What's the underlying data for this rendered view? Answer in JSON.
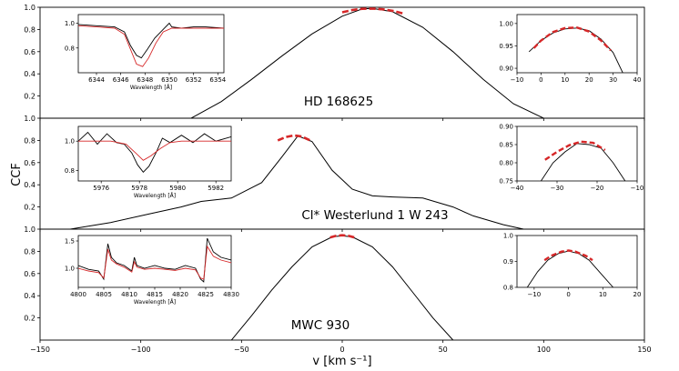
{
  "figure": {
    "xlabel": "v [km s⁻¹]",
    "ylabel": "CCF",
    "colors": {
      "observed": "#000000",
      "model": "#d62728",
      "fit": "#d62728"
    }
  },
  "chart_data": [
    {
      "type": "line",
      "name": "HD 168625 main CCF",
      "label": "HD 168625",
      "xlim": [
        -150,
        150
      ],
      "ylim": [
        0,
        1.0
      ],
      "xticks": [
        "−150",
        "−100",
        "−50",
        "0",
        "50",
        "100",
        "150"
      ],
      "yticks": [
        "0.2",
        "0.4",
        "0.6",
        "0.8",
        "1.0"
      ],
      "series": [
        {
          "name": "CCF",
          "x": [
            -75,
            -60,
            -45,
            -30,
            -15,
            0,
            10,
            15,
            25,
            40,
            55,
            70,
            85,
            100
          ],
          "y": [
            0.0,
            0.15,
            0.35,
            0.56,
            0.76,
            0.92,
            0.985,
            0.99,
            0.96,
            0.82,
            0.6,
            0.35,
            0.13,
            0.0
          ]
        },
        {
          "name": "Gaussian fit",
          "x": [
            0,
            5,
            10,
            15,
            20,
            25,
            30
          ],
          "y": [
            0.955,
            0.975,
            0.986,
            0.988,
            0.982,
            0.968,
            0.945
          ]
        }
      ],
      "insets": [
        {
          "type": "line",
          "name": "Spectrum",
          "xlabel": "Wavelength [Å]",
          "xlim": [
            6342.5,
            6354.5
          ],
          "ylim": [
            0.6,
            1.07
          ],
          "xticks": [
            "6344",
            "6346",
            "6348",
            "6350",
            "6352",
            "6354"
          ],
          "yticks": [
            "0.8",
            "1.0"
          ],
          "series": [
            {
              "name": "observed",
              "x": [
                6342.5,
                6344,
                6345.5,
                6346.3,
                6346.8,
                6347.3,
                6347.7,
                6348.2,
                6348.8,
                6349.5,
                6350.0,
                6350.2,
                6351,
                6352,
                6353,
                6354.5
              ],
              "y": [
                0.99,
                0.98,
                0.97,
                0.93,
                0.82,
                0.74,
                0.72,
                0.79,
                0.88,
                0.95,
                1.0,
                0.97,
                0.96,
                0.97,
                0.97,
                0.96
              ]
            },
            {
              "name": "model",
              "x": [
                6342.5,
                6344,
                6345.5,
                6346.3,
                6346.8,
                6347.3,
                6347.8,
                6348.3,
                6348.9,
                6349.5,
                6350.2,
                6351,
                6352,
                6353,
                6354.5
              ],
              "y": [
                0.98,
                0.97,
                0.96,
                0.91,
                0.79,
                0.67,
                0.65,
                0.72,
                0.84,
                0.93,
                0.96,
                0.96,
                0.96,
                0.96,
                0.96
              ]
            }
          ]
        },
        {
          "type": "line",
          "name": "Peak zoom",
          "xlim": [
            -10,
            40
          ],
          "ylim": [
            0.89,
            1.02
          ],
          "xticks": [
            "−10",
            "0",
            "10",
            "20",
            "30",
            "40"
          ],
          "yticks": [
            "0.90",
            "0.95",
            "1.00"
          ],
          "series": [
            {
              "name": "CCF",
              "x": [
                -5,
                0,
                5,
                10,
                15,
                20,
                25,
                30,
                34
              ],
              "y": [
                0.937,
                0.962,
                0.979,
                0.988,
                0.99,
                0.984,
                0.965,
                0.935,
                0.89
              ]
            },
            {
              "name": "fit",
              "x": [
                -3,
                0,
                5,
                10,
                15,
                20,
                25,
                29
              ],
              "y": [
                0.945,
                0.962,
                0.981,
                0.99,
                0.991,
                0.982,
                0.962,
                0.94
              ]
            }
          ]
        }
      ]
    },
    {
      "type": "line",
      "name": "Cl* Westerlund 1 W 243 main CCF",
      "label": "Cl* Westerlund 1 W 243",
      "xlim": [
        -150,
        150
      ],
      "ylim": [
        0,
        1.0
      ],
      "yticks": [
        "0.2",
        "0.4",
        "0.6",
        "0.8",
        "1.0"
      ],
      "series": [
        {
          "name": "CCF",
          "x": [
            -135,
            -115,
            -95,
            -80,
            -70,
            -55,
            -40,
            -30,
            -22,
            -15,
            -5,
            5,
            15,
            25,
            40,
            55,
            65,
            80,
            90
          ],
          "y": [
            0.0,
            0.06,
            0.14,
            0.2,
            0.25,
            0.28,
            0.42,
            0.65,
            0.84,
            0.79,
            0.53,
            0.36,
            0.3,
            0.29,
            0.28,
            0.2,
            0.12,
            0.04,
            0.0
          ]
        },
        {
          "name": "Gaussian fit",
          "x": [
            -32,
            -28,
            -24,
            -20,
            -16
          ],
          "y": [
            0.8,
            0.83,
            0.845,
            0.835,
            0.8
          ]
        }
      ],
      "insets": [
        {
          "type": "line",
          "name": "Spectrum",
          "xlabel": "Wavelength [Å]",
          "xlim": [
            5974.8,
            5982.8
          ],
          "ylim": [
            0.73,
            1.1
          ],
          "xticks": [
            "5976",
            "5978",
            "5980",
            "5982"
          ],
          "yticks": [
            "0.8",
            "1.0"
          ],
          "series": [
            {
              "name": "observed",
              "x": [
                5974.8,
                5975.3,
                5975.8,
                5976.3,
                5976.8,
                5977.2,
                5977.6,
                5977.9,
                5978.2,
                5978.5,
                5978.9,
                5979.2,
                5979.6,
                5980.2,
                5980.8,
                5981.4,
                5982,
                5982.8
              ],
              "y": [
                1.0,
                1.06,
                0.98,
                1.05,
                0.99,
                0.98,
                0.92,
                0.84,
                0.79,
                0.83,
                0.93,
                1.02,
                0.99,
                1.04,
                0.99,
                1.05,
                1.0,
                1.03
              ]
            },
            {
              "name": "model",
              "x": [
                5974.8,
                5976.5,
                5977.3,
                5977.8,
                5978.2,
                5978.6,
                5979.1,
                5979.6,
                5980.2,
                5982.8
              ],
              "y": [
                1.0,
                1.0,
                0.98,
                0.92,
                0.87,
                0.9,
                0.95,
                0.99,
                1.0,
                1.0
              ]
            }
          ]
        },
        {
          "type": "line",
          "name": "Peak zoom",
          "xlim": [
            -40,
            -10
          ],
          "ylim": [
            0.75,
            0.9
          ],
          "xticks": [
            "−40",
            "−30",
            "−20",
            "−10"
          ],
          "yticks": [
            "0.75",
            "0.80",
            "0.85",
            "0.90"
          ],
          "series": [
            {
              "name": "CCF",
              "x": [
                -34,
                -31,
                -28,
                -25,
                -22,
                -19,
                -16,
                -13
              ],
              "y": [
                0.75,
                0.8,
                0.83,
                0.853,
                0.85,
                0.84,
                0.8,
                0.75
              ]
            },
            {
              "name": "fit",
              "x": [
                -33,
                -30,
                -27,
                -24,
                -21,
                -18
              ],
              "y": [
                0.808,
                0.83,
                0.848,
                0.858,
                0.855,
                0.835
              ]
            }
          ]
        }
      ]
    },
    {
      "type": "line",
      "name": "MWC 930 main CCF",
      "label": "MWC 930",
      "xlim": [
        -150,
        150
      ],
      "ylim": [
        0,
        1.0
      ],
      "yticks": [
        "0.2",
        "0.4",
        "0.6",
        "0.8",
        "1.0"
      ],
      "series": [
        {
          "name": "CCF",
          "x": [
            -55,
            -45,
            -35,
            -25,
            -15,
            -5,
            0,
            5,
            15,
            25,
            35,
            45,
            55
          ],
          "y": [
            0.0,
            0.22,
            0.45,
            0.66,
            0.84,
            0.93,
            0.94,
            0.93,
            0.84,
            0.66,
            0.43,
            0.2,
            0.0
          ]
        },
        {
          "name": "Gaussian fit",
          "x": [
            -6,
            -3,
            0,
            3,
            6
          ],
          "y": [
            0.925,
            0.94,
            0.945,
            0.94,
            0.925
          ]
        }
      ],
      "insets": [
        {
          "type": "line",
          "name": "Spectrum",
          "xlabel": "Wavelength [Å]",
          "xlim": [
            4800,
            4830
          ],
          "ylim": [
            0.65,
            1.6
          ],
          "xticks": [
            "4800",
            "4805",
            "4810",
            "4815",
            "4820",
            "4825",
            "4830"
          ],
          "yticks": [
            "1.0",
            "1.5"
          ],
          "series": [
            {
              "name": "observed",
              "x": [
                4800,
                4802,
                4804,
                4805,
                4805.8,
                4806.5,
                4807.5,
                4809,
                4810.5,
                4811,
                4811.5,
                4813,
                4815,
                4817,
                4819,
                4821,
                4823,
                4824,
                4824.6,
                4825.3,
                4826.5,
                4828,
                4830
              ],
              "y": [
                1.05,
                0.98,
                0.95,
                0.8,
                1.45,
                1.2,
                1.1,
                1.05,
                0.95,
                1.2,
                1.05,
                1.0,
                1.05,
                1.0,
                0.98,
                1.05,
                1.0,
                0.8,
                0.75,
                1.55,
                1.3,
                1.2,
                1.15
              ]
            },
            {
              "name": "model",
              "x": [
                4800,
                4802,
                4804,
                4805,
                4805.8,
                4806.5,
                4807.5,
                4809,
                4810.5,
                4811,
                4811.5,
                4813,
                4815,
                4817,
                4819,
                4821,
                4823,
                4824,
                4824.6,
                4825.3,
                4826.5,
                4828,
                4830
              ],
              "y": [
                1.0,
                0.95,
                0.92,
                0.82,
                1.35,
                1.15,
                1.08,
                1.02,
                0.93,
                1.12,
                1.02,
                0.98,
                1.0,
                0.98,
                0.96,
                1.0,
                0.97,
                0.82,
                0.8,
                1.4,
                1.22,
                1.15,
                1.1
              ]
            }
          ]
        },
        {
          "type": "line",
          "name": "Peak zoom",
          "xlim": [
            -15,
            20
          ],
          "ylim": [
            0.8,
            1.0
          ],
          "xticks": [
            "−10",
            "0",
            "10",
            "20"
          ],
          "yticks": [
            "0.8",
            "0.9",
            "1.0"
          ],
          "series": [
            {
              "name": "CCF",
              "x": [
                -12,
                -9,
                -6,
                -3,
                0,
                3,
                6,
                9,
                13
              ],
              "y": [
                0.8,
                0.86,
                0.905,
                0.93,
                0.94,
                0.93,
                0.905,
                0.86,
                0.8
              ]
            },
            {
              "name": "fit",
              "x": [
                -7,
                -5,
                -2,
                0,
                2,
                5,
                7
              ],
              "y": [
                0.905,
                0.922,
                0.938,
                0.942,
                0.938,
                0.922,
                0.905
              ]
            }
          ]
        }
      ]
    }
  ]
}
